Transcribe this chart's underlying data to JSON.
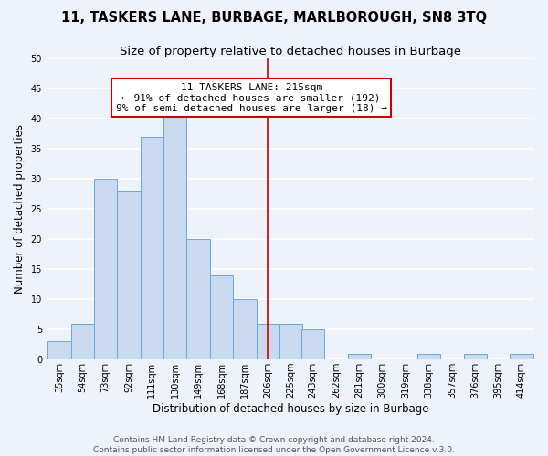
{
  "title": "11, TASKERS LANE, BURBAGE, MARLBOROUGH, SN8 3TQ",
  "subtitle": "Size of property relative to detached houses in Burbage",
  "xlabel": "Distribution of detached houses by size in Burbage",
  "ylabel": "Number of detached properties",
  "bin_labels": [
    "35sqm",
    "54sqm",
    "73sqm",
    "92sqm",
    "111sqm",
    "130sqm",
    "149sqm",
    "168sqm",
    "187sqm",
    "206sqm",
    "225sqm",
    "243sqm",
    "262sqm",
    "281sqm",
    "300sqm",
    "319sqm",
    "338sqm",
    "357sqm",
    "376sqm",
    "395sqm",
    "414sqm"
  ],
  "bin_left_edges": [
    35,
    54,
    73,
    92,
    111,
    130,
    149,
    168,
    187,
    206,
    225,
    243,
    262,
    281,
    300,
    319,
    338,
    357,
    376,
    395,
    414
  ],
  "bin_width": 19,
  "bar_heights": [
    3,
    6,
    30,
    28,
    37,
    42,
    20,
    14,
    10,
    6,
    6,
    5,
    0,
    1,
    0,
    0,
    1,
    0,
    1,
    0,
    1
  ],
  "bar_color": "#c8d9f0",
  "bar_edge_color": "#6aaad4",
  "property_value": 215,
  "property_label": "11 TASKERS LANE: 215sqm",
  "annotation_line1": "← 91% of detached houses are smaller (192)",
  "annotation_line2": "9% of semi-detached houses are larger (18) →",
  "vline_color": "#cc0000",
  "ylim": [
    0,
    50
  ],
  "yticks": [
    0,
    5,
    10,
    15,
    20,
    25,
    30,
    35,
    40,
    45,
    50
  ],
  "footer_line1": "Contains HM Land Registry data © Crown copyright and database right 2024.",
  "footer_line2": "Contains public sector information licensed under the Open Government Licence v.3.0.",
  "annotation_box_color": "#cc0000",
  "background_color": "#eef2fb",
  "grid_color": "#ffffff",
  "title_fontsize": 10.5,
  "subtitle_fontsize": 9.5,
  "axis_label_fontsize": 8.5,
  "tick_fontsize": 7,
  "annotation_fontsize": 8,
  "footer_fontsize": 6.5
}
